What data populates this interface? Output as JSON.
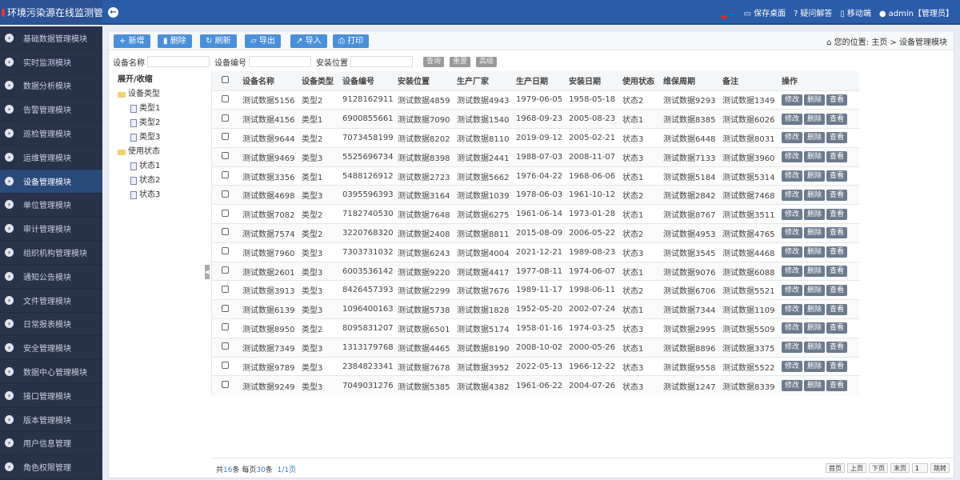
{
  "header": {
    "title": "环境污染源在线监测管",
    "links": [
      {
        "icon": "monitor-icon",
        "label": "保存桌面"
      },
      {
        "icon": "question-icon",
        "label": "疑问解答"
      },
      {
        "icon": "mobile-icon",
        "label": "移动端"
      },
      {
        "icon": "user-avatar-icon",
        "label": "admin【管理员】"
      }
    ],
    "color": "#2b5ca8"
  },
  "sidebar": {
    "active": "设备管理模块",
    "items": [
      "基础数据管理模块",
      "实时监测模块",
      "数据分析模块",
      "告警管理模块",
      "巡检管理模块",
      "运维管理模块",
      "设备管理模块",
      "单位管理模块",
      "审计管理模块",
      "组织机构管理模块",
      "通知公告模块",
      "文件管理模块",
      "日常报表模块",
      "安全管理模块",
      "数据中心管理模块",
      "接口管理模块",
      "版本管理模块",
      "用户信息管理",
      "角色权限管理"
    ]
  },
  "toolbar": [
    {
      "icon": "plus-icon",
      "label": "新增"
    },
    {
      "icon": "trash-icon",
      "label": "删除"
    },
    {
      "icon": "refresh-icon",
      "label": "刷新"
    },
    {
      "icon": "folder-icon",
      "label": "导出"
    },
    {
      "icon": "external-icon",
      "label": "导入"
    },
    {
      "icon": "print-icon",
      "label": "打印"
    }
  ],
  "breadcrumb": {
    "prefix": "您的位置:",
    "home": "主页",
    "sep": ">",
    "current": "设备管理模块"
  },
  "filters": {
    "fields": [
      "设备名称",
      "设备编号",
      "安装位置"
    ],
    "buttons": [
      "查询",
      "重置",
      "高级"
    ]
  },
  "tree": {
    "toggle": "展开/收缩",
    "groups": [
      {
        "label": "设备类型",
        "children": [
          "类型1",
          "类型2",
          "类型3"
        ]
      },
      {
        "label": "使用状态",
        "children": [
          "状态1",
          "状态2",
          "状态3"
        ]
      }
    ]
  },
  "table": {
    "columns": [
      "设备名称",
      "设备类型",
      "设备编号",
      "安装位置",
      "生产厂家",
      "生产日期",
      "安装日期",
      "使用状态",
      "维保周期",
      "备注",
      "操作"
    ],
    "actions": [
      "修改",
      "删除",
      "查看"
    ],
    "rows": [
      [
        "测试数据5156",
        "类型2",
        "9128162911",
        "测试数据4859",
        "测试数据4943",
        "1979-06-05",
        "1958-05-18",
        "状态2",
        "测试数据9293",
        "测试数据1349"
      ],
      [
        "测试数据4156",
        "类型1",
        "6900855661",
        "测试数据7090",
        "测试数据1540",
        "1968-09-23",
        "2005-08-23",
        "状态1",
        "测试数据8385",
        "测试数据6026"
      ],
      [
        "测试数据9644",
        "类型2",
        "7073458199",
        "测试数据8202",
        "测试数据8110",
        "2019-09-12",
        "2005-02-21",
        "状态3",
        "测试数据6448",
        "测试数据8031"
      ],
      [
        "测试数据9469",
        "类型3",
        "5525696734",
        "测试数据8398",
        "测试数据2441",
        "1988-07-03",
        "2008-11-07",
        "状态3",
        "测试数据7133",
        "测试数据3960"
      ],
      [
        "测试数据3356",
        "类型1",
        "5488126912",
        "测试数据2723",
        "测试数据5662",
        "1976-04-22",
        "1968-06-06",
        "状态1",
        "测试数据5184",
        "测试数据5314"
      ],
      [
        "测试数据4698",
        "类型3",
        "0395596393",
        "测试数据3164",
        "测试数据1039",
        "1978-06-03",
        "1961-10-12",
        "状态2",
        "测试数据2842",
        "测试数据7468"
      ],
      [
        "测试数据7082",
        "类型2",
        "7182740530",
        "测试数据7648",
        "测试数据6275",
        "1961-06-14",
        "1973-01-28",
        "状态1",
        "测试数据8767",
        "测试数据3511"
      ],
      [
        "测试数据7574",
        "类型2",
        "3220768320",
        "测试数据2408",
        "测试数据8811",
        "2015-08-09",
        "2006-05-22",
        "状态2",
        "测试数据4953",
        "测试数据4765"
      ],
      [
        "测试数据7960",
        "类型3",
        "7303731032",
        "测试数据6243",
        "测试数据4004",
        "2021-12-21",
        "1989-08-23",
        "状态3",
        "测试数据3545",
        "测试数据4468"
      ],
      [
        "测试数据2601",
        "类型3",
        "6003536142",
        "测试数据9220",
        "测试数据4417",
        "1977-08-11",
        "1974-06-07",
        "状态1",
        "测试数据9076",
        "测试数据6088"
      ],
      [
        "测试数据3913",
        "类型3",
        "8426457393",
        "测试数据2299",
        "测试数据7676",
        "1989-11-17",
        "1998-06-11",
        "状态2",
        "测试数据6706",
        "测试数据5521"
      ],
      [
        "测试数据6139",
        "类型3",
        "1096400163",
        "测试数据5738",
        "测试数据1828",
        "1952-05-20",
        "2002-07-24",
        "状态1",
        "测试数据7344",
        "测试数据1109"
      ],
      [
        "测试数据8950",
        "类型2",
        "8095831207",
        "测试数据6501",
        "测试数据5174",
        "1958-01-16",
        "1974-03-25",
        "状态3",
        "测试数据2995",
        "测试数据5509"
      ],
      [
        "测试数据7349",
        "类型3",
        "1313179768",
        "测试数据4465",
        "测试数据8190",
        "2008-10-02",
        "2000-05-26",
        "状态1",
        "测试数据8896",
        "测试数据3375"
      ],
      [
        "测试数据9789",
        "类型3",
        "2384823341",
        "测试数据7678",
        "测试数据3952",
        "2022-05-13",
        "1966-12-22",
        "状态3",
        "测试数据9558",
        "测试数据5522"
      ],
      [
        "测试数据9249",
        "类型3",
        "7049031276",
        "测试数据5385",
        "测试数据4382",
        "1961-06-22",
        "2004-07-26",
        "状态3",
        "测试数据1247",
        "测试数据8339"
      ]
    ]
  },
  "pager": {
    "total_pre": "共",
    "total": "16",
    "total_post": "条",
    "per_pre": "每页",
    "per": "30",
    "per_post": "条",
    "pages": "1/1页",
    "buttons": [
      "首页",
      "上页",
      "下页",
      "末页"
    ],
    "page_input": "1",
    "go": "跳转"
  }
}
